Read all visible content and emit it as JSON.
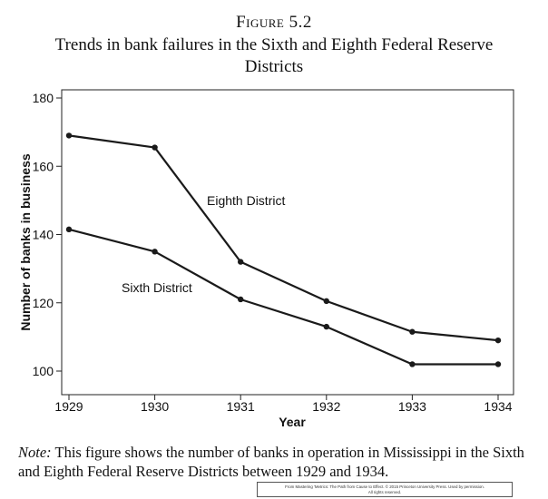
{
  "figure": {
    "label": "Figure 5.2",
    "title": "Trends in bank failures in the Sixth and Eighth Federal Reserve Districts"
  },
  "chart_data": {
    "type": "line",
    "x": [
      1929,
      1930,
      1931,
      1932,
      1933,
      1934
    ],
    "series": [
      {
        "name": "Eighth District",
        "values": [
          169,
          165.5,
          132,
          120.5,
          111.5,
          109
        ]
      },
      {
        "name": "Sixth District",
        "values": [
          141.5,
          135,
          121,
          113,
          102,
          102
        ]
      }
    ],
    "xlabel": "Year",
    "ylabel": "Number of banks in business",
    "xlim": [
      1929,
      1934
    ],
    "ylim": [
      100,
      180
    ],
    "yticks": [
      100,
      120,
      140,
      160,
      180
    ],
    "grid": false,
    "legend": "inline labels next to lines",
    "line_color": "#1a1a1a"
  },
  "note": {
    "prefix": "Note:",
    "text": " This figure shows the number of banks in operation in Mississippi in the Sixth and Eighth Federal Reserve Districts between 1929 and 1934."
  },
  "credit": {
    "line1": "From Mastering 'Metrics: The Path from Cause to Effect. © 2015 Princeton University Press. Used by permission.",
    "line2": "All rights reserved."
  }
}
